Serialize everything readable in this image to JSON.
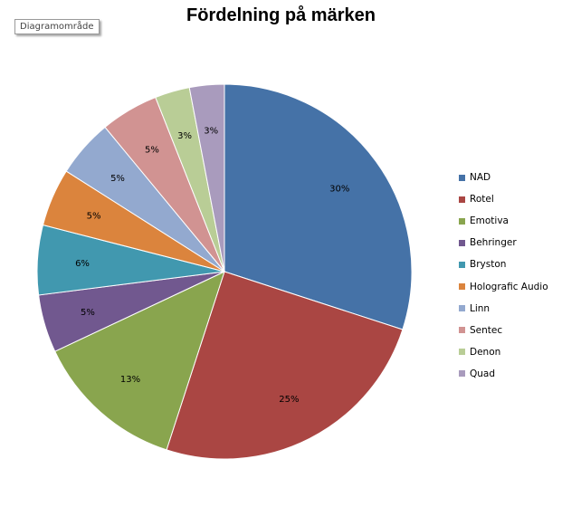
{
  "window": {
    "tag_label": "Diagramområde"
  },
  "chart_data": {
    "type": "pie",
    "title": "Fördelning på märken",
    "legend_position": "right",
    "categories": [
      "NAD",
      "Rotel",
      "Emotiva",
      "Behringer",
      "Bryston",
      "Holografic Audio",
      "Linn",
      "Sentec",
      "Denon",
      "Quad"
    ],
    "values": [
      30,
      25,
      13,
      5,
      6,
      5,
      5,
      5,
      3,
      3
    ],
    "data_labels": [
      "30%",
      "25%",
      "13%",
      "5%",
      "6%",
      "5%",
      "5%",
      "5%",
      "3%",
      "3%"
    ],
    "colors": [
      "#4572a7",
      "#aa4643",
      "#89a54e",
      "#71588f",
      "#4198af",
      "#db843d",
      "#93a9cf",
      "#d19392",
      "#b9cd96",
      "#a99bbd"
    ]
  }
}
